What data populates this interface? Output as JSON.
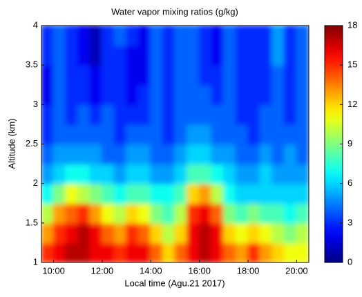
{
  "chart_data": {
    "type": "heatmap",
    "title": "Water vapor mixing ratios (g/kg)",
    "x_label": "Local time (Agu.21 2017)",
    "y_label": "Altitude (km)",
    "colormap": "jet",
    "x": [
      9.75,
      10.25,
      10.75,
      11.25,
      11.75,
      12.25,
      12.75,
      13.25,
      13.75,
      14.25,
      14.75,
      15.25,
      15.75,
      16.25,
      16.75,
      17.25,
      17.75,
      18.25,
      18.75,
      19.25,
      19.75,
      20.25
    ],
    "y": [
      1.125,
      1.375,
      1.625,
      1.875,
      2.125,
      2.375,
      2.625,
      2.875,
      3.125,
      3.375,
      3.625,
      3.875
    ],
    "z": [
      [
        15,
        16,
        17,
        17,
        16,
        16,
        15,
        16,
        16,
        14,
        12,
        14,
        16,
        17,
        16,
        14,
        13,
        15,
        13,
        12,
        11,
        11
      ],
      [
        13,
        15,
        16,
        17,
        16,
        14,
        13,
        15,
        14,
        12,
        10,
        12,
        16,
        17,
        16,
        12,
        11,
        12,
        11,
        10,
        9,
        10
      ],
      [
        10,
        13,
        14,
        15,
        13,
        11,
        10,
        12,
        11,
        9,
        8,
        10,
        15,
        16,
        14,
        9,
        8,
        9,
        8,
        8,
        7,
        8
      ],
      [
        7,
        9,
        11,
        10,
        9,
        8,
        7,
        8,
        8,
        7,
        7,
        8,
        12,
        13,
        10,
        7,
        6,
        6,
        6,
        6,
        6,
        6
      ],
      [
        5,
        6,
        7,
        7,
        6,
        6,
        5,
        6,
        6,
        5,
        5,
        6,
        8,
        8,
        7,
        6,
        5,
        5,
        6,
        5,
        5,
        5
      ],
      [
        4,
        5,
        5,
        5,
        5,
        4,
        4,
        5,
        5,
        4,
        4,
        5,
        6,
        6,
        5,
        5,
        4,
        4,
        5,
        4,
        5,
        4
      ],
      [
        3,
        4,
        4,
        4,
        4,
        4,
        3,
        4,
        4,
        4,
        3,
        4,
        5,
        5,
        4,
        4,
        4,
        3,
        4,
        4,
        4,
        4
      ],
      [
        3,
        4,
        3,
        4,
        3,
        4,
        3,
        3,
        3,
        4,
        3,
        4,
        4,
        4,
        4,
        4,
        3,
        3,
        4,
        4,
        3,
        4
      ],
      [
        2,
        4,
        3,
        3,
        2,
        3,
        3,
        2,
        3,
        4,
        3,
        4,
        4,
        4,
        3,
        4,
        3,
        3,
        3,
        4,
        3,
        4
      ],
      [
        2,
        4,
        3,
        3,
        2,
        3,
        3,
        2,
        2,
        4,
        3,
        4,
        4,
        3,
        3,
        4,
        3,
        3,
        3,
        4,
        3,
        4
      ],
      [
        3,
        4,
        3,
        2,
        1,
        3,
        3,
        2,
        2,
        4,
        3,
        4,
        4,
        3,
        2,
        4,
        3,
        3,
        3,
        5,
        3,
        4
      ],
      [
        3,
        4,
        3,
        2,
        1,
        3,
        4,
        3,
        2,
        4,
        3,
        4,
        4,
        3,
        2,
        4,
        3,
        3,
        3,
        5,
        3,
        4
      ]
    ],
    "xlim": [
      9.5,
      20.5
    ],
    "xticks": [
      {
        "value": 10,
        "label": "10:00"
      },
      {
        "value": 12,
        "label": "12:00"
      },
      {
        "value": 14,
        "label": "14:00"
      },
      {
        "value": 16,
        "label": "16:00"
      },
      {
        "value": 18,
        "label": "18:00"
      },
      {
        "value": 20,
        "label": "20:00"
      }
    ],
    "ylim": [
      1,
      4
    ],
    "yticks": [
      1,
      1.5,
      2,
      2.5,
      3,
      3.5,
      4
    ],
    "clim": [
      0,
      18
    ],
    "cticks": [
      0,
      3,
      6,
      9,
      12,
      15,
      18
    ]
  }
}
